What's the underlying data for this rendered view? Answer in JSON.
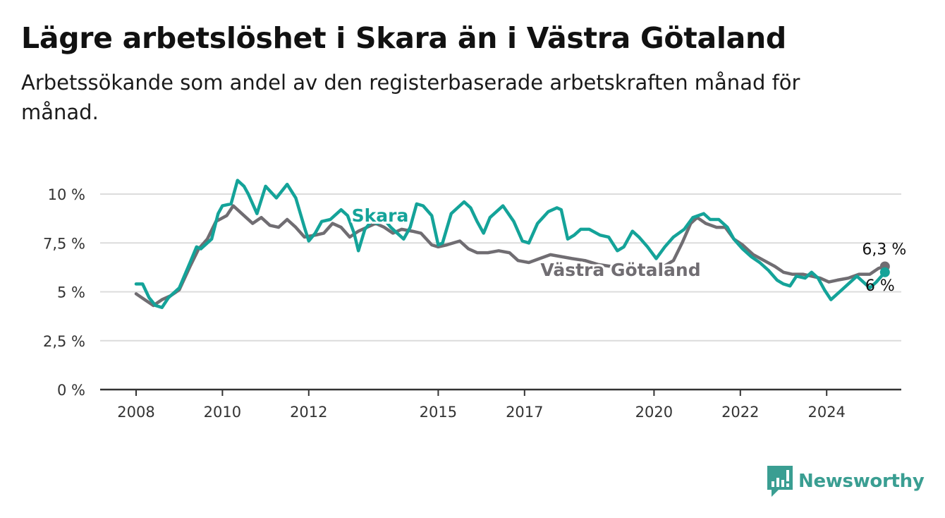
{
  "title": "Lägre arbetslöshet i Skara än i Västra Götaland",
  "subtitle": "Arbetssökande som andel av den registerbaserade arbetskraften månad för månad.",
  "brand": {
    "name": "Newsworthy",
    "icon": "newsworthy-logo-icon",
    "color": "#3a9e92"
  },
  "colors": {
    "skara": "#14a399",
    "vg": "#706d72",
    "grid": "#dcdcdc",
    "axis": "#333333"
  },
  "chart_data": {
    "type": "line",
    "title": "",
    "xlabel": "",
    "ylabel": "",
    "ylim": [
      0,
      10.5
    ],
    "xlim": [
      2007.7,
      2025.5
    ],
    "grid": true,
    "legend": "inline labels",
    "y_ticks": [
      {
        "value": 0,
        "label": "0 %"
      },
      {
        "value": 2.5,
        "label": "2,5 %"
      },
      {
        "value": 5,
        "label": "5 %"
      },
      {
        "value": 7.5,
        "label": "7,5 %"
      },
      {
        "value": 10,
        "label": "10 %"
      }
    ],
    "x_ticks": [
      {
        "value": 2008,
        "label": "2008"
      },
      {
        "value": 2010,
        "label": "2010"
      },
      {
        "value": 2012,
        "label": "2012"
      },
      {
        "value": 2015,
        "label": "2015"
      },
      {
        "value": 2017,
        "label": "2017"
      },
      {
        "value": 2020,
        "label": "2020"
      },
      {
        "value": 2022,
        "label": "2022"
      },
      {
        "value": 2024,
        "label": "2024"
      }
    ],
    "series": [
      {
        "name": "Skara",
        "color": "#14a399",
        "end_label": "6 %",
        "points": [
          [
            2008.0,
            5.4
          ],
          [
            2008.15,
            5.4
          ],
          [
            2008.3,
            4.7
          ],
          [
            2008.45,
            4.3
          ],
          [
            2008.6,
            4.2
          ],
          [
            2008.75,
            4.7
          ],
          [
            2009.0,
            5.2
          ],
          [
            2009.25,
            6.5
          ],
          [
            2009.4,
            7.3
          ],
          [
            2009.5,
            7.2
          ],
          [
            2009.75,
            7.7
          ],
          [
            2009.9,
            9.0
          ],
          [
            2010.0,
            9.4
          ],
          [
            2010.2,
            9.5
          ],
          [
            2010.35,
            10.7
          ],
          [
            2010.5,
            10.4
          ],
          [
            2010.6,
            10.0
          ],
          [
            2010.8,
            9.0
          ],
          [
            2011.0,
            10.4
          ],
          [
            2011.25,
            9.8
          ],
          [
            2011.5,
            10.5
          ],
          [
            2011.7,
            9.8
          ],
          [
            2011.9,
            8.3
          ],
          [
            2012.0,
            7.6
          ],
          [
            2012.15,
            8.0
          ],
          [
            2012.3,
            8.6
          ],
          [
            2012.5,
            8.7
          ],
          [
            2012.75,
            9.2
          ],
          [
            2012.9,
            8.9
          ],
          [
            2013.05,
            8.0
          ],
          [
            2013.15,
            7.1
          ],
          [
            2013.3,
            8.2
          ],
          [
            2013.45,
            8.6
          ],
          [
            2013.6,
            8.5
          ],
          [
            2013.75,
            8.7
          ],
          [
            2013.9,
            8.3
          ],
          [
            2014.05,
            8.0
          ],
          [
            2014.2,
            7.7
          ],
          [
            2014.35,
            8.3
          ],
          [
            2014.5,
            9.5
          ],
          [
            2014.65,
            9.4
          ],
          [
            2014.85,
            8.9
          ],
          [
            2015.0,
            7.4
          ],
          [
            2015.1,
            7.5
          ],
          [
            2015.3,
            9.0
          ],
          [
            2015.45,
            9.3
          ],
          [
            2015.6,
            9.6
          ],
          [
            2015.75,
            9.3
          ],
          [
            2015.9,
            8.6
          ],
          [
            2016.05,
            8.0
          ],
          [
            2016.2,
            8.8
          ],
          [
            2016.5,
            9.4
          ],
          [
            2016.75,
            8.6
          ],
          [
            2016.95,
            7.6
          ],
          [
            2017.1,
            7.5
          ],
          [
            2017.3,
            8.5
          ],
          [
            2017.55,
            9.1
          ],
          [
            2017.75,
            9.3
          ],
          [
            2017.85,
            9.2
          ],
          [
            2018.0,
            7.7
          ],
          [
            2018.15,
            7.9
          ],
          [
            2018.3,
            8.2
          ],
          [
            2018.5,
            8.2
          ],
          [
            2018.75,
            7.9
          ],
          [
            2018.95,
            7.8
          ],
          [
            2019.15,
            7.1
          ],
          [
            2019.3,
            7.3
          ],
          [
            2019.5,
            8.1
          ],
          [
            2019.65,
            7.8
          ],
          [
            2019.85,
            7.3
          ],
          [
            2020.05,
            6.7
          ],
          [
            2020.25,
            7.3
          ],
          [
            2020.45,
            7.8
          ],
          [
            2020.7,
            8.2
          ],
          [
            2020.9,
            8.8
          ],
          [
            2021.15,
            9.0
          ],
          [
            2021.3,
            8.7
          ],
          [
            2021.5,
            8.7
          ],
          [
            2021.7,
            8.3
          ],
          [
            2021.85,
            7.7
          ],
          [
            2022.05,
            7.2
          ],
          [
            2022.25,
            6.8
          ],
          [
            2022.45,
            6.5
          ],
          [
            2022.65,
            6.1
          ],
          [
            2022.85,
            5.6
          ],
          [
            2023.0,
            5.4
          ],
          [
            2023.15,
            5.3
          ],
          [
            2023.3,
            5.8
          ],
          [
            2023.5,
            5.7
          ],
          [
            2023.65,
            6.0
          ],
          [
            2023.8,
            5.7
          ],
          [
            2023.95,
            5.1
          ],
          [
            2024.1,
            4.6
          ],
          [
            2024.3,
            5.0
          ],
          [
            2024.5,
            5.4
          ],
          [
            2024.7,
            5.8
          ],
          [
            2024.9,
            5.4
          ],
          [
            2025.0,
            5.2
          ],
          [
            2025.15,
            5.5
          ],
          [
            2025.35,
            6.0
          ]
        ]
      },
      {
        "name": "Västra Götaland",
        "color": "#706d72",
        "end_label": "6,3 %",
        "points": [
          [
            2008.0,
            4.9
          ],
          [
            2008.2,
            4.6
          ],
          [
            2008.4,
            4.3
          ],
          [
            2008.6,
            4.6
          ],
          [
            2008.8,
            4.8
          ],
          [
            2009.0,
            5.1
          ],
          [
            2009.25,
            6.3
          ],
          [
            2009.45,
            7.2
          ],
          [
            2009.65,
            7.7
          ],
          [
            2009.85,
            8.6
          ],
          [
            2010.1,
            8.9
          ],
          [
            2010.25,
            9.4
          ],
          [
            2010.45,
            9.0
          ],
          [
            2010.7,
            8.5
          ],
          [
            2010.9,
            8.8
          ],
          [
            2011.1,
            8.4
          ],
          [
            2011.3,
            8.3
          ],
          [
            2011.5,
            8.7
          ],
          [
            2011.7,
            8.3
          ],
          [
            2011.9,
            7.8
          ],
          [
            2012.15,
            7.9
          ],
          [
            2012.35,
            8.0
          ],
          [
            2012.55,
            8.5
          ],
          [
            2012.75,
            8.3
          ],
          [
            2012.95,
            7.8
          ],
          [
            2013.15,
            8.1
          ],
          [
            2013.35,
            8.3
          ],
          [
            2013.55,
            8.5
          ],
          [
            2013.75,
            8.3
          ],
          [
            2013.95,
            8.0
          ],
          [
            2014.15,
            8.2
          ],
          [
            2014.4,
            8.1
          ],
          [
            2014.6,
            8.0
          ],
          [
            2014.85,
            7.4
          ],
          [
            2015.0,
            7.3
          ],
          [
            2015.2,
            7.4
          ],
          [
            2015.5,
            7.6
          ],
          [
            2015.7,
            7.2
          ],
          [
            2015.9,
            7.0
          ],
          [
            2016.15,
            7.0
          ],
          [
            2016.4,
            7.1
          ],
          [
            2016.65,
            7.0
          ],
          [
            2016.85,
            6.6
          ],
          [
            2017.1,
            6.5
          ],
          [
            2017.35,
            6.7
          ],
          [
            2017.6,
            6.9
          ],
          [
            2017.85,
            6.8
          ],
          [
            2018.1,
            6.7
          ],
          [
            2018.4,
            6.6
          ],
          [
            2018.7,
            6.4
          ],
          [
            2019.0,
            6.3
          ],
          [
            2019.3,
            6.2
          ],
          [
            2019.6,
            6.3
          ],
          [
            2019.9,
            6.3
          ],
          [
            2020.15,
            6.2
          ],
          [
            2020.45,
            6.6
          ],
          [
            2020.65,
            7.5
          ],
          [
            2020.85,
            8.5
          ],
          [
            2021.0,
            8.8
          ],
          [
            2021.2,
            8.5
          ],
          [
            2021.45,
            8.3
          ],
          [
            2021.65,
            8.3
          ],
          [
            2021.85,
            7.7
          ],
          [
            2022.05,
            7.4
          ],
          [
            2022.3,
            6.9
          ],
          [
            2022.55,
            6.6
          ],
          [
            2022.8,
            6.3
          ],
          [
            2023.0,
            6.0
          ],
          [
            2023.2,
            5.9
          ],
          [
            2023.45,
            5.9
          ],
          [
            2023.65,
            5.8
          ],
          [
            2023.85,
            5.7
          ],
          [
            2024.05,
            5.5
          ],
          [
            2024.25,
            5.6
          ],
          [
            2024.5,
            5.7
          ],
          [
            2024.75,
            5.9
          ],
          [
            2025.0,
            5.9
          ],
          [
            2025.2,
            6.2
          ],
          [
            2025.35,
            6.3
          ]
        ]
      }
    ]
  }
}
